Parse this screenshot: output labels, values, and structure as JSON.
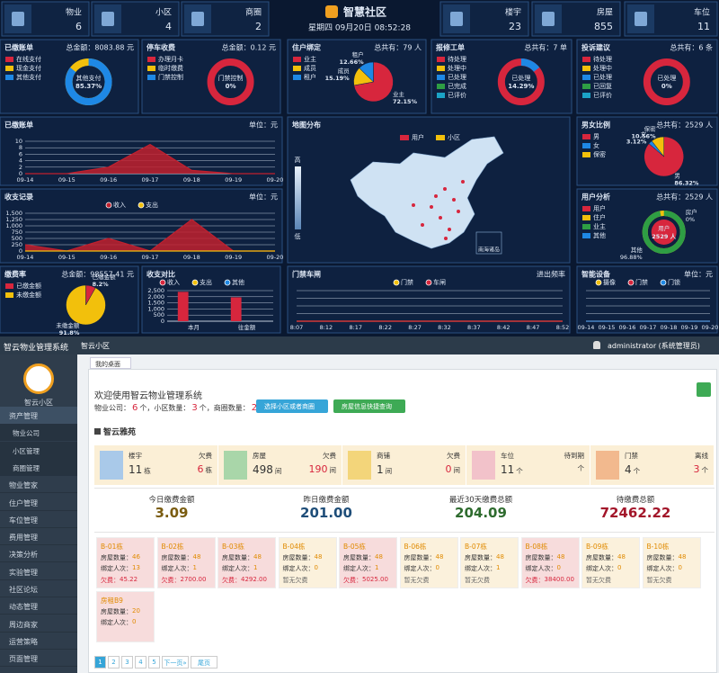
{
  "dashboard": {
    "title": "智慧社区",
    "datetime": "星期四 09月20日 08:52:28",
    "stats": [
      {
        "label": "物业",
        "value": 6
      },
      {
        "label": "小区",
        "value": 4
      },
      {
        "label": "商圈",
        "value": 2
      },
      {
        "label": "楼宇",
        "value": 23
      },
      {
        "label": "房屋",
        "value": 855
      },
      {
        "label": "车位",
        "value": 11
      }
    ],
    "donuts": [
      {
        "title": "已缴账单",
        "summary": "总金额：8083.88 元",
        "legend": [
          "在线支付",
          "现金支付",
          "其他支付"
        ],
        "legend_colors": [
          "#d7263d",
          "#f2c00c",
          "#1e88e5"
        ],
        "label": "其他支付",
        "value": 85.37,
        "value_label": "85.37%",
        "color": "#1e88e5",
        "rest_color": "#f2c00c"
      },
      {
        "title": "停车收费",
        "summary": "总金额：0.12 元",
        "legend": [
          "办理月卡",
          "临时缴费",
          "门禁控制"
        ],
        "legend_colors": [
          "#d7263d",
          "#f2c00c",
          "#1e88e5"
        ],
        "label": "门禁控制",
        "value": 0,
        "value_label": "0%",
        "color": "#1e88e5",
        "rest_color": "#d7263d"
      },
      {
        "title": "报修工单",
        "summary": "总共有：7 单",
        "legend": [
          "待处理",
          "处理中",
          "已处理",
          "已完成",
          "已评价"
        ],
        "legend_colors": [
          "#d7263d",
          "#f2c00c",
          "#1e88e5",
          "#2e9e44",
          "#1ba3c6"
        ],
        "label": "已处理",
        "value": 14.29,
        "value_label": "14.29%",
        "color": "#1e88e5",
        "rest_color": "#d7263d"
      },
      {
        "title": "投诉建议",
        "summary": "总共有：6 条",
        "legend": [
          "待处理",
          "处理中",
          "已处理",
          "已回复",
          "已评价"
        ],
        "legend_colors": [
          "#d7263d",
          "#f2c00c",
          "#1e88e5",
          "#2e9e44",
          "#1ba3c6"
        ],
        "label": "已处理",
        "value": 0,
        "value_label": "0%",
        "color": "#1e88e5",
        "rest_color": "#d7263d"
      }
    ],
    "pies": [
      {
        "title": "住户绑定",
        "summary": "总共有：79 人",
        "legend": [
          "业主",
          "成员",
          "租户"
        ],
        "colors": [
          "#d7263d",
          "#f2c00c",
          "#1e88e5"
        ],
        "values": [
          72.15,
          15.19,
          12.66
        ],
        "value_labels": [
          "72.15%",
          "15.19%",
          "12.66%"
        ]
      },
      {
        "title": "男女比例",
        "summary": "总共有：2529 人",
        "legend": [
          "男",
          "女",
          "保密"
        ],
        "colors": [
          "#d7263d",
          "#1e88e5",
          "#f2c00c"
        ],
        "values": [
          86.32,
          3.12,
          10.56
        ],
        "value_labels": [
          "86.32%",
          "3.12%",
          "10.56%"
        ]
      },
      {
        "title": "缴费率",
        "summary": "总金额：98557.41 元",
        "legend": [
          "已缴金额",
          "未缴金额"
        ],
        "colors": [
          "#d7263d",
          "#f2c00c"
        ],
        "values": [
          8.2,
          91.8
        ],
        "value_labels": [
          "8.2%",
          "91.8%"
        ]
      }
    ],
    "user_analysis": {
      "title": "用户分析",
      "summary": "总共有：2529 人",
      "legend": [
        "用户",
        "住户",
        "业主",
        "其他"
      ],
      "legend_colors": [
        "#d7263d",
        "#f2c00c",
        "#2e9e44",
        "#1e88e5"
      ],
      "center_label": "用户",
      "center_value": "2529 人",
      "labels": [
        {
          "name": "房户",
          "value": 0,
          "value_label": "0%",
          "color": "#d7263d"
        },
        {
          "name": "其他",
          "value": 96.88,
          "value_label": "96.88%",
          "color": "#2e9e44"
        }
      ],
      "rest_color": "#f2c00c"
    },
    "charts": [
      {
        "type": "line",
        "title": "已缴账单",
        "unit": "单位：元",
        "categories": [
          "09-14",
          "09-15",
          "09-16",
          "09-17",
          "09-18",
          "09-19",
          "09-20"
        ],
        "values": [
          0,
          0,
          2,
          9,
          1,
          0,
          0
        ],
        "color": "#c0202e",
        "area": true,
        "ylim": [
          0,
          10
        ],
        "yticks": [
          0,
          2,
          4,
          6,
          8,
          10
        ]
      },
      {
        "type": "line",
        "title": "收支记录",
        "unit": "单位：元",
        "categories": [
          "09-14",
          "09-15",
          "09-16",
          "09-17",
          "09-18",
          "09-19",
          "09-20"
        ],
        "ylim": [
          0,
          1500
        ],
        "yticks": [
          0,
          250,
          500,
          750,
          {
            "value": 1000,
            "label": "1,000"
          },
          {
            "value": 1250,
            "label": "1,250"
          },
          {
            "value": 1500,
            "label": "1,500"
          }
        ],
        "series": [
          {
            "name": "收入",
            "color": "#c0202e",
            "area": true,
            "values": [
              250,
              0,
              500,
              0,
              1250,
              0,
              0
            ]
          },
          {
            "name": "支出",
            "color": "#f2c00c",
            "values": [
              0,
              0,
              0,
              0,
              0,
              0,
              0
            ]
          }
        ]
      },
      {
        "type": "bar",
        "title": "收支对比",
        "categories": [
          "本月",
          "往金额"
        ],
        "ylim": [
          0,
          2500
        ],
        "yticks": [
          0,
          500,
          {
            "value": 1000,
            "label": "1,000"
          },
          {
            "value": 1500,
            "label": "1,500"
          },
          {
            "value": 2000,
            "label": "2,000"
          },
          {
            "value": 2500,
            "label": "2,500"
          }
        ],
        "series": [
          {
            "name": "收入",
            "color": "#d7263d",
            "values": [
              2400,
              1950
            ]
          },
          {
            "name": "支出",
            "color": "#f2c00c",
            "values": [
              0,
              0
            ]
          },
          {
            "name": "其他",
            "color": "#1e88e5",
            "values": [
              0,
              0
            ]
          }
        ]
      },
      {
        "type": "line",
        "title": "门禁车闸",
        "unit": "进出频率",
        "categories": [
          "8:07",
          "8:12",
          "8:17",
          "8:22",
          "8:27",
          "8:32",
          "8:37",
          "8:42",
          "8:47",
          "8:52"
        ],
        "ylim": [
          0,
          1
        ],
        "series": [
          {
            "name": "门禁",
            "color": "#f2c00c",
            "values": [
              0,
              0,
              0,
              0,
              0,
              0,
              0,
              0,
              0,
              0
            ]
          },
          {
            "name": "车闸",
            "color": "#d7263d",
            "values": [
              0,
              0,
              0,
              0,
              0,
              0,
              0,
              0,
              0,
              0
            ]
          }
        ]
      },
      {
        "type": "line",
        "title": "智能设备",
        "unit": "单位：元",
        "categories": [
          "09-14",
          "09-15",
          "09-16",
          "09-17",
          "09-18",
          "09-19",
          "09-20"
        ],
        "ylim": [
          0,
          1
        ],
        "series": [
          {
            "name": "摄像",
            "color": "#f2c00c",
            "values": [
              0,
              0,
              0,
              0,
              0,
              0,
              0
            ]
          },
          {
            "name": "门禁",
            "color": "#d7263d",
            "values": [
              0,
              0,
              0,
              0,
              0,
              0,
              0
            ]
          },
          {
            "name": "门锁",
            "color": "#1e88e5",
            "values": [
              0,
              0,
              0,
              0,
              0,
              0,
              0
            ]
          }
        ]
      }
    ],
    "map": {
      "title": "地图分布",
      "legend": [
        "用户",
        "小区"
      ],
      "legend_colors": [
        "#d7263d",
        "#f2c00c"
      ],
      "scale_high": "高",
      "scale_low": "低",
      "inset": "南海诸岛"
    }
  },
  "admin": {
    "system_name": "智云物业管理系统",
    "community": "智云小区",
    "user": "administrator (系统管理员)",
    "logo_label": "智云小区",
    "menu": [
      "资产管理",
      "物业管家",
      "住户管理",
      "车位管理",
      "费用管理",
      "决策分析",
      "实验管理",
      "社区论坛",
      "动态管理",
      "周边商家",
      "运营策略",
      "页面管理"
    ],
    "submenu": [
      "物业公司",
      "小区管理",
      "商圈管理"
    ],
    "tab": "我的桌面",
    "welcome": "欢迎使用智云物业管理系统",
    "counts": [
      {
        "label": "物业公司：",
        "value": 6,
        "unit": "个，"
      },
      {
        "label": "小区数量：",
        "value": 3,
        "unit": "个，"
      },
      {
        "label": "商圈数量：",
        "value": 2,
        "unit": "个"
      }
    ],
    "buttons": [
      "选择小区或者商圈",
      "房屋信息快捷查询"
    ],
    "section": "智云雅苑",
    "tiles": [
      {
        "name": "楼宇",
        "count": 11,
        "unit": "栋",
        "sub": "欠费",
        "sub_count": 6,
        "sub_unit": "栋"
      },
      {
        "name": "房屋",
        "count": 498,
        "unit": "间",
        "sub": "欠费",
        "sub_count": 190,
        "sub_unit": "间"
      },
      {
        "name": "商铺",
        "count": 1,
        "unit": "间",
        "sub": "欠费",
        "sub_count": 0,
        "sub_unit": "间"
      },
      {
        "name": "车位",
        "count": 11,
        "unit": "个",
        "sub": "待到期",
        "sub_unit": "个"
      },
      {
        "name": "门禁",
        "count": 4,
        "unit": "个",
        "sub": "离线",
        "sub_count": 3,
        "sub_unit": "个"
      }
    ],
    "money": [
      {
        "label": "今日缴费金额",
        "value": "3.09",
        "color": "#7a5c10"
      },
      {
        "label": "昨日缴费金额",
        "value": "201.00",
        "color": "#1f4e79"
      },
      {
        "label": "最近30天缴费总额",
        "value": "204.09",
        "color": "#2e6b2e"
      },
      {
        "label": "待缴费总额",
        "value": "72462.22",
        "color": "#a3162a"
      }
    ],
    "building_labels": {
      "houses": "房屋数量：",
      "bound": "绑定人次：",
      "due": "欠费："
    },
    "buildings": [
      {
        "name": "B-01栋",
        "houses": 46,
        "bound": 13,
        "due": "45.22"
      },
      {
        "name": "B-02栋",
        "houses": 48,
        "bound": 1,
        "due": "2700.00"
      },
      {
        "name": "B-03栋",
        "houses": 48,
        "bound": 1,
        "due": "4292.00"
      },
      {
        "name": "B-04栋",
        "houses": 48,
        "bound": 0,
        "status": "暂无欠费"
      },
      {
        "name": "B-05栋",
        "houses": 48,
        "bound": 1,
        "due": "5025.00"
      },
      {
        "name": "B-06栋",
        "houses": 48,
        "bound": 0,
        "status": "暂无欠费"
      },
      {
        "name": "B-07栋",
        "houses": 48,
        "bound": 1,
        "status": "暂无欠费"
      },
      {
        "name": "B-08栋",
        "houses": 48,
        "bound": 0,
        "due": "38400.00"
      },
      {
        "name": "B-09栋",
        "houses": 48,
        "bound": 0,
        "status": "暂无欠费"
      },
      {
        "name": "B-10栋",
        "houses": 48,
        "bound": 0,
        "status": "暂无欠费"
      },
      {
        "name": "房租B9",
        "houses": 20,
        "bound": 0
      }
    ],
    "pages": [
      "1",
      "2",
      "3",
      "4",
      "5",
      "下一页»",
      "尾页"
    ]
  }
}
